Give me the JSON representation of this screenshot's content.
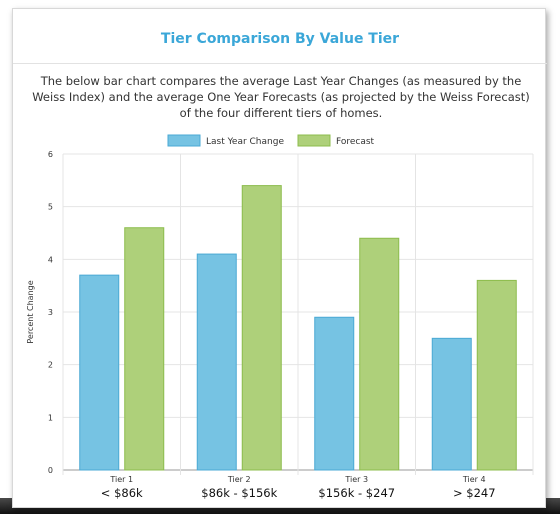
{
  "page": {
    "title": "Tier Comparison By Value Tier",
    "description": "The below bar chart compares the average Last Year Changes (as measured by the Weiss Index) and the average One Year Forecasts (as projected by the Weiss Forecast) of the four different tiers of homes."
  },
  "chart_data": {
    "type": "bar",
    "categories": [
      "Tier 1",
      "Tier 2",
      "Tier 3",
      "Tier 4"
    ],
    "category_sublabels": [
      "< $86k",
      "$86k - $156k",
      "$156k - $247",
      "> $247"
    ],
    "series": [
      {
        "name": "Last Year Change",
        "values": [
          3.7,
          4.1,
          2.9,
          2.5
        ],
        "color": "#76c3e3",
        "stroke": "#4aa9d4"
      },
      {
        "name": "Forecast",
        "values": [
          4.6,
          5.4,
          4.4,
          3.6
        ],
        "color": "#aed07a",
        "stroke": "#8cbc4c"
      }
    ],
    "ylabel": "Percent Change",
    "ylim": [
      0,
      6
    ],
    "yticks": [
      0,
      1,
      2,
      3,
      4,
      5,
      6
    ],
    "grid": true,
    "legend": "top-center"
  }
}
